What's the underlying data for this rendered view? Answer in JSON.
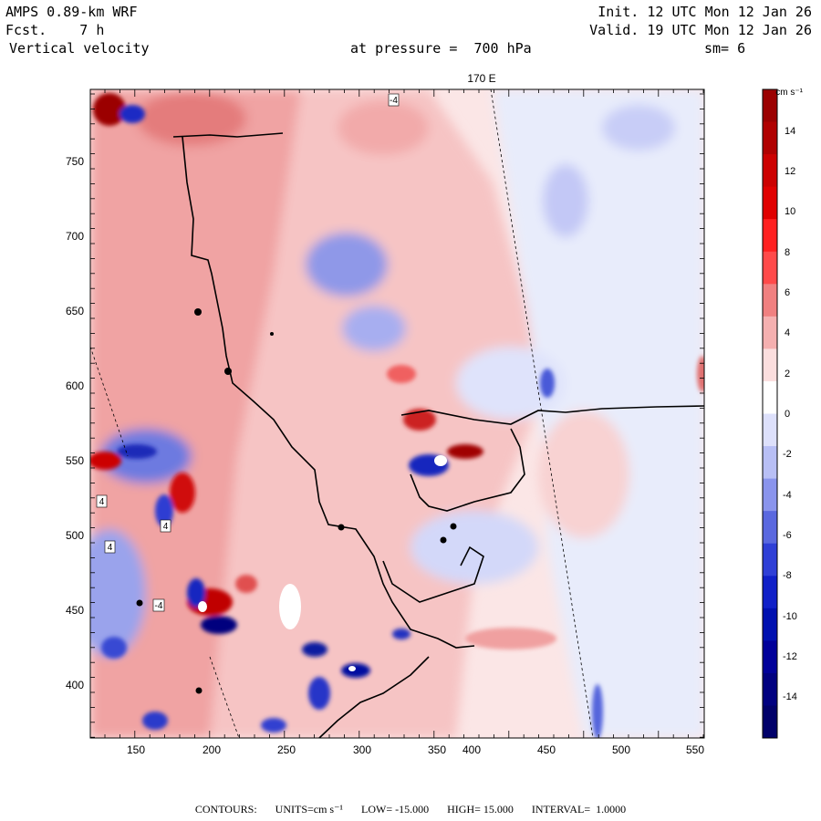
{
  "header": {
    "model": "AMPS 0.89-km WRF",
    "fcst_label": "Fcst.",
    "fcst_value": "7 h",
    "field": "Vertical velocity",
    "init": "Init. 12 UTC Mon 12 Jan 26",
    "valid": "Valid. 19 UTC Mon 12 Jan 26",
    "pressure": "at pressure =  700 hPa",
    "smoothing": "sm= 6"
  },
  "map": {
    "meridian_label": "170 E",
    "x_ticks": [
      "150",
      "200",
      "250",
      "300",
      "350",
      "400",
      "450",
      "500",
      "550"
    ],
    "y_ticks": [
      "750",
      "700",
      "650",
      "600",
      "550",
      "500",
      "450",
      "400"
    ],
    "contour_labels": [
      "-4",
      "4",
      "4",
      "4",
      "-4"
    ],
    "colors": {
      "background": "#ffffff",
      "coast": "#000000"
    }
  },
  "colorbar": {
    "units": "cm s⁻¹",
    "levels": [
      "14",
      "12",
      "10",
      "8",
      "6",
      "4",
      "2",
      "0",
      "-2",
      "-4",
      "-6",
      "-8",
      "-10",
      "-12",
      "-14"
    ],
    "colors": [
      "#9b0000",
      "#b00000",
      "#cc0000",
      "#e00000",
      "#ff2020",
      "#ff4a4a",
      "#f08080",
      "#f5b0b0",
      "#fbdede",
      "#ffffff",
      "#dde0fb",
      "#b8bff5",
      "#8a94ec",
      "#5a68df",
      "#2f3fd6",
      "#1020c8",
      "#0010b0",
      "#00009a",
      "#000080",
      "#00006a"
    ]
  },
  "footer": {
    "contours": "CONTOURS:",
    "units": "UNITS=cm s⁻¹",
    "low": "LOW= -15.000",
    "high": "HIGH= 15.000",
    "interval": "INTERVAL=  1.0000"
  }
}
